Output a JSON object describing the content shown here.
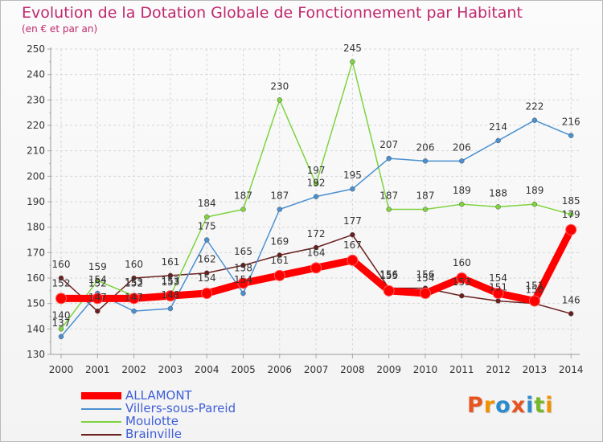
{
  "header": {
    "title": "Evolution de la Dotation Globale de Fonctionnement par Habitant",
    "subtitle": "(en € et par an)"
  },
  "brand": {
    "letters": [
      "P",
      "r",
      "o",
      "x",
      "i",
      "t",
      "i"
    ],
    "colors": [
      "#e8531f",
      "#f29100",
      "#2a8ccf",
      "#e8531f",
      "#2a8ccf",
      "#76b82a",
      "#f29100"
    ]
  },
  "chart_data": {
    "type": "line",
    "title": "Evolution de la Dotation Globale de Fonctionnement par Habitant",
    "subtitle": "(en € et par an)",
    "xlabel": "",
    "ylabel": "",
    "x": [
      "2000",
      "2001",
      "2002",
      "2003",
      "2004",
      "2005",
      "2006",
      "2007",
      "2008",
      "2009",
      "2010",
      "2011",
      "2012",
      "2013",
      "2014"
    ],
    "ylim": [
      130,
      250
    ],
    "yticks": [
      130,
      140,
      150,
      160,
      170,
      180,
      190,
      200,
      210,
      220,
      230,
      240,
      250
    ],
    "grid": "dashed",
    "legend": "bottom-left",
    "series": [
      {
        "name": "ALLAMONT",
        "color": "#ff0000",
        "values": [
          152,
          152,
          152,
          153,
          154,
          158,
          161,
          164,
          167,
          155,
          154,
          160,
          154,
          151,
          179
        ]
      },
      {
        "name": "Villers-sous-Pareid",
        "color": "#4a90d0",
        "values": [
          137,
          154,
          147,
          148,
          175,
          154,
          187,
          192,
          195,
          207,
          206,
          206,
          214,
          222,
          216
        ]
      },
      {
        "name": "Moulotte",
        "color": "#7ed33f",
        "values": [
          140,
          159,
          153,
          153,
          184,
          187,
          230,
          197,
          245,
          187,
          187,
          189,
          188,
          189,
          185
        ]
      },
      {
        "name": "Brainville",
        "color": "#6b1f1f",
        "values": [
          160,
          147,
          160,
          161,
          162,
          165,
          169,
          172,
          177,
          156,
          156,
          153,
          151,
          150,
          146
        ]
      }
    ],
    "data_labels": [
      {
        "series": 0,
        "text": [
          "152",
          "152",
          "152",
          "153",
          "154",
          "158",
          "161",
          "164",
          "167",
          "155",
          "154",
          "160",
          "154",
          "151",
          "179"
        ]
      },
      {
        "series": 1,
        "text": [
          "137",
          "154",
          "147",
          "148",
          "175",
          "154",
          "187",
          "192",
          "195",
          "207",
          "206",
          "206",
          "214",
          "222",
          "216"
        ]
      },
      {
        "series": 2,
        "text": [
          "140",
          "159",
          "153",
          "153",
          "184",
          "187",
          "230",
          "197",
          "245",
          "187",
          "187",
          "189",
          "188",
          "189",
          "185"
        ]
      },
      {
        "series": 3,
        "text": [
          "160",
          "147",
          "160",
          "161",
          "162",
          "165",
          "169",
          "172",
          "177",
          "156",
          "156",
          "153",
          "151",
          "150",
          "146"
        ]
      }
    ]
  }
}
